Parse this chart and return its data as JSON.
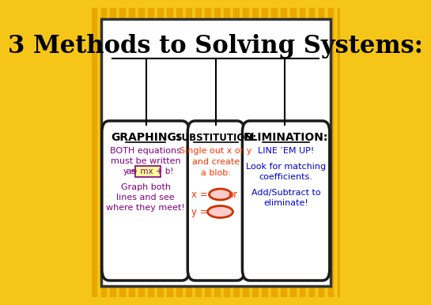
{
  "title": "3 Methods to Solving Systems:",
  "title_fontsize": 22,
  "title_font": "DejaVu Serif",
  "bg_outer": "#F5C518",
  "bg_inner": "#FFFFFF",
  "box_border": "#1a1a1a",
  "sections": [
    {
      "header": "GRAPHING:",
      "header_color": "#000000",
      "content_color": "#800080",
      "content_lines": [
        "BOTH equations",
        "must be written",
        "as y = mx + b!",
        "",
        "Graph both",
        "lines and see",
        "where they meet!"
      ],
      "has_box": true,
      "box_text": "y = mx + b!",
      "box_color": "#FFFF99"
    },
    {
      "header": "SUBSTITUTION:",
      "header_color": "#000000",
      "content_color": "#FF3300",
      "content_lines": [
        "Single out x or y",
        "and create",
        "a blob:"
      ],
      "has_blobs": true
    },
    {
      "header": "ELIMINATION:",
      "header_color": "#000000",
      "content_color": "#0000CC",
      "content_lines": [
        "LINE ’EM UP!",
        "",
        "Look for matching",
        "coefficients.",
        "",
        "Add/Subtract to",
        "eliminate!"
      ]
    }
  ],
  "stripe_color": "#F5C518",
  "stripe_dark": "#E8A800"
}
